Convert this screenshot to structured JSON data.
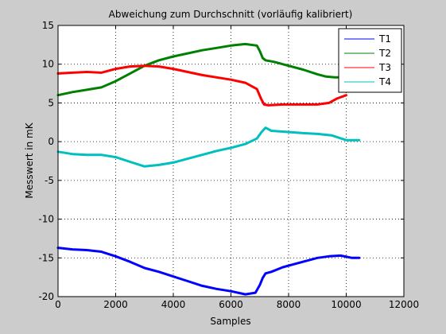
{
  "chart_data": {
    "type": "line",
    "title": "Abweichung zum Durchschnitt (vorläufig kalibriert)",
    "xlabel": "Samples",
    "ylabel": "Messwert in mK",
    "xlim": [
      0,
      12000
    ],
    "ylim": [
      -20,
      15
    ],
    "xticks": [
      0,
      2000,
      4000,
      6000,
      8000,
      10000,
      12000
    ],
    "xtick_labels": [
      "0",
      "2000",
      "4000",
      "6000",
      "8000",
      "10000",
      "12000"
    ],
    "yticks": [
      -20,
      -15,
      -10,
      -5,
      0,
      5,
      10,
      15
    ],
    "ytick_labels": [
      "-20",
      "-15",
      "-10",
      "-5",
      "0",
      "5",
      "10",
      "15"
    ],
    "grid": true,
    "legend_position": "top-right",
    "series": [
      {
        "name": "T1",
        "color": "#0000ff",
        "x": [
          0,
          500,
          1000,
          1500,
          2000,
          2500,
          3000,
          3500,
          4000,
          4500,
          5000,
          5500,
          6000,
          6500,
          6850,
          7000,
          7100,
          7200,
          7400,
          7800,
          8200,
          8600,
          9000,
          9400,
          9800,
          10200,
          10450
        ],
        "y": [
          -13.7,
          -13.9,
          -14.0,
          -14.2,
          -14.8,
          -15.5,
          -16.3,
          -16.8,
          -17.4,
          -18.0,
          -18.6,
          -19.0,
          -19.3,
          -19.7,
          -19.5,
          -18.5,
          -17.6,
          -17.0,
          -16.8,
          -16.2,
          -15.8,
          -15.4,
          -15.0,
          -14.8,
          -14.7,
          -15.0,
          -15.0
        ]
      },
      {
        "name": "T2",
        "color": "#008000",
        "x": [
          0,
          500,
          1000,
          1500,
          2000,
          2500,
          3000,
          3500,
          4000,
          4500,
          5000,
          5500,
          6000,
          6500,
          6900,
          7000,
          7100,
          7200,
          7500,
          8000,
          8500,
          9000,
          9300,
          9600,
          10000
        ],
        "y": [
          6.0,
          6.4,
          6.7,
          7.0,
          7.8,
          8.8,
          9.8,
          10.5,
          11.0,
          11.4,
          11.8,
          12.1,
          12.4,
          12.6,
          12.4,
          11.7,
          10.8,
          10.5,
          10.3,
          9.8,
          9.3,
          8.7,
          8.4,
          8.3,
          8.3
        ]
      },
      {
        "name": "T3",
        "color": "#ff0000",
        "x": [
          0,
          500,
          1000,
          1500,
          2000,
          2500,
          3000,
          3500,
          4000,
          4500,
          5000,
          5500,
          6000,
          6500,
          6900,
          7050,
          7150,
          7300,
          7800,
          8500,
          9000,
          9400,
          9700,
          10000
        ],
        "y": [
          8.8,
          8.9,
          9.0,
          8.9,
          9.4,
          9.7,
          9.8,
          9.7,
          9.4,
          9.0,
          8.6,
          8.3,
          8.0,
          7.6,
          6.8,
          5.5,
          4.8,
          4.7,
          4.8,
          4.8,
          4.8,
          5.0,
          5.6,
          6.0
        ]
      },
      {
        "name": "T4",
        "color": "#00bfbf",
        "x": [
          0,
          500,
          1000,
          1500,
          2000,
          2500,
          3000,
          3500,
          4000,
          4500,
          5000,
          5500,
          6000,
          6500,
          6900,
          7050,
          7200,
          7400,
          7800,
          8500,
          9000,
          9500,
          10000,
          10450
        ],
        "y": [
          -1.3,
          -1.6,
          -1.7,
          -1.7,
          -2.0,
          -2.6,
          -3.2,
          -3.0,
          -2.7,
          -2.2,
          -1.7,
          -1.2,
          -0.8,
          -0.3,
          0.4,
          1.2,
          1.8,
          1.4,
          1.3,
          1.1,
          1.0,
          0.8,
          0.2,
          0.2
        ]
      }
    ]
  }
}
